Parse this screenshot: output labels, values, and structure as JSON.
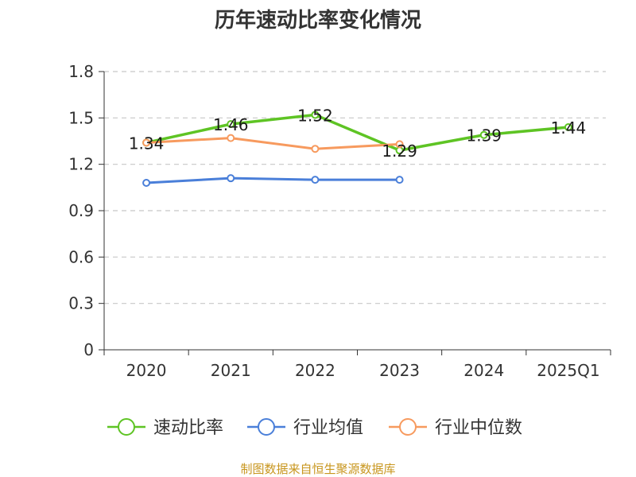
{
  "chart_data": {
    "type": "line",
    "title": "历年速动比率变化情况",
    "categories": [
      "2020",
      "2021",
      "2022",
      "2023",
      "2024",
      "2025Q1"
    ],
    "y_ticks": [
      "0",
      "0.3",
      "0.6",
      "0.9",
      "1.2",
      "1.5",
      "1.8"
    ],
    "ylim": [
      0,
      1.8
    ],
    "grid": true,
    "legend_position": "bottom",
    "series": [
      {
        "name": "速动比率",
        "color": "#5ec424",
        "values": [
          1.34,
          1.46,
          1.52,
          1.29,
          1.39,
          1.44
        ],
        "labels": [
          "1.34",
          "1.46",
          "1.52",
          "1.29",
          "1.39",
          "1.44"
        ]
      },
      {
        "name": "行业均值",
        "color": "#4a7fd9",
        "values": [
          1.08,
          1.11,
          1.1,
          1.1,
          null,
          null
        ]
      },
      {
        "name": "行业中位数",
        "color": "#f79a5e",
        "values": [
          1.34,
          1.37,
          1.3,
          1.33,
          null,
          null
        ]
      }
    ],
    "source": "制图数据来自恒生聚源数据库"
  }
}
